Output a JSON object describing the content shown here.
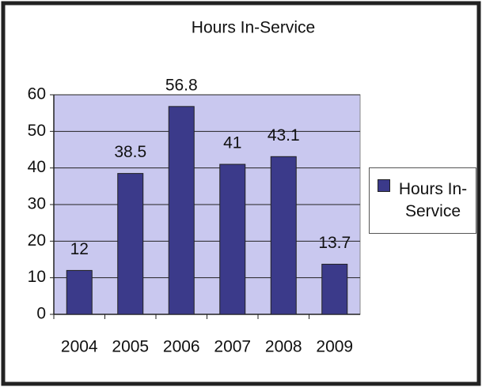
{
  "chart_data": {
    "type": "bar",
    "title": "Hours In-Service",
    "categories": [
      "2004",
      "2005",
      "2006",
      "2007",
      "2008",
      "2009"
    ],
    "series": [
      {
        "name": "Hours In-Service",
        "color": "#3b3a8a",
        "values": [
          12,
          38.5,
          56.8,
          41,
          43.1,
          13.7
        ]
      }
    ],
    "ylim": [
      0,
      60
    ],
    "yticks": [
      0,
      10,
      20,
      30,
      40,
      50,
      60
    ],
    "grid": true,
    "legend": "right"
  }
}
